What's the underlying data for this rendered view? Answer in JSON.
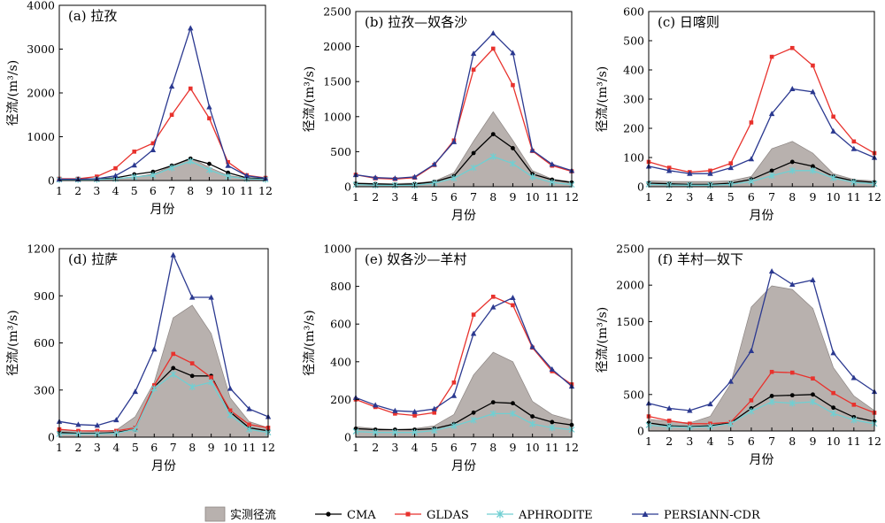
{
  "x_axis_label": "月份",
  "y_axis_label": "径流/(m³/s)",
  "months": [
    1,
    2,
    3,
    4,
    5,
    6,
    7,
    8,
    9,
    10,
    11,
    12
  ],
  "legend": {
    "observed": "实测径流",
    "cma": "CMA",
    "gldas": "GLDAS",
    "aphrodite": "APHRODITE",
    "persiann": "PERSIANN-CDR"
  },
  "colors": {
    "observed_fill": "#b8b1ae",
    "observed_edge": "#8c8583",
    "cma": "#000000",
    "gldas": "#e8322d",
    "aphrodite": "#70cfd2",
    "persiann": "#2b3990"
  },
  "chart_data": [
    {
      "type": "line",
      "title": "(a) 拉孜",
      "xlabel": "",
      "ylabel": "径流/(m³/s)",
      "x": [
        1,
        2,
        3,
        4,
        5,
        6,
        7,
        8,
        9,
        10,
        11,
        12
      ],
      "ylim": [
        0,
        4000
      ],
      "yticks": [
        0,
        1000,
        2000,
        3000,
        4000
      ],
      "series": [
        {
          "name": "实测径流",
          "kind": "area",
          "values": [
            30,
            25,
            25,
            45,
            80,
            150,
            330,
            520,
            300,
            120,
            50,
            35
          ]
        },
        {
          "name": "CMA",
          "values": [
            30,
            30,
            35,
            60,
            140,
            200,
            340,
            500,
            380,
            180,
            60,
            40
          ]
        },
        {
          "name": "GLDAS",
          "values": [
            40,
            40,
            90,
            280,
            660,
            850,
            1500,
            2100,
            1420,
            420,
            120,
            60
          ]
        },
        {
          "name": "APHRODITE",
          "values": [
            20,
            20,
            25,
            40,
            80,
            120,
            290,
            440,
            240,
            90,
            40,
            25
          ]
        },
        {
          "name": "PERSIANN-CDR",
          "values": [
            30,
            30,
            40,
            110,
            350,
            700,
            2150,
            3480,
            1680,
            340,
            110,
            50
          ]
        }
      ]
    },
    {
      "type": "line",
      "title": "(b) 拉孜—奴各沙",
      "xlabel": "",
      "ylabel": "径流/(m³/s)",
      "x": [
        1,
        2,
        3,
        4,
        5,
        6,
        7,
        8,
        9,
        10,
        11,
        12
      ],
      "ylim": [
        0,
        2500
      ],
      "yticks": [
        0,
        500,
        1000,
        1500,
        2000,
        2500
      ],
      "series": [
        {
          "name": "实测径流",
          "kind": "area",
          "values": [
            55,
            45,
            45,
            50,
            80,
            200,
            650,
            1070,
            660,
            230,
            110,
            70
          ]
        },
        {
          "name": "CMA",
          "values": [
            45,
            40,
            30,
            40,
            70,
            150,
            480,
            750,
            550,
            180,
            100,
            60
          ]
        },
        {
          "name": "GLDAS",
          "values": [
            170,
            120,
            110,
            130,
            310,
            660,
            1670,
            1970,
            1450,
            510,
            300,
            220
          ]
        },
        {
          "name": "APHRODITE",
          "values": [
            30,
            20,
            20,
            20,
            50,
            120,
            270,
            430,
            330,
            140,
            60,
            30
          ]
        },
        {
          "name": "PERSIANN-CDR",
          "values": [
            170,
            130,
            120,
            140,
            320,
            640,
            1900,
            2190,
            1910,
            520,
            320,
            230
          ]
        }
      ]
    },
    {
      "type": "line",
      "title": "(c) 日喀则",
      "xlabel": "",
      "ylabel": "径流/(m³/s)",
      "x": [
        1,
        2,
        3,
        4,
        5,
        6,
        7,
        8,
        9,
        10,
        11,
        12
      ],
      "ylim": [
        0,
        600
      ],
      "yticks": [
        0,
        100,
        200,
        300,
        400,
        500,
        600
      ],
      "series": [
        {
          "name": "实测径流",
          "kind": "area",
          "values": [
            20,
            18,
            18,
            18,
            20,
            35,
            130,
            155,
            115,
            45,
            25,
            20
          ]
        },
        {
          "name": "CMA",
          "values": [
            12,
            10,
            8,
            8,
            12,
            25,
            55,
            85,
            70,
            35,
            20,
            15
          ]
        },
        {
          "name": "GLDAS",
          "values": [
            85,
            65,
            50,
            55,
            80,
            220,
            445,
            475,
            415,
            240,
            155,
            115
          ]
        },
        {
          "name": "APHRODITE",
          "values": [
            8,
            6,
            5,
            5,
            8,
            18,
            38,
            55,
            55,
            30,
            15,
            10
          ]
        },
        {
          "name": "PERSIANN-CDR",
          "values": [
            70,
            55,
            45,
            45,
            65,
            95,
            250,
            335,
            325,
            190,
            130,
            100
          ]
        }
      ]
    },
    {
      "type": "line",
      "title": "(d) 拉萨",
      "xlabel": "",
      "ylabel": "径流/(m³/s)",
      "x": [
        1,
        2,
        3,
        4,
        5,
        6,
        7,
        8,
        9,
        10,
        11,
        12
      ],
      "ylim": [
        0,
        1200
      ],
      "yticks": [
        0,
        300,
        600,
        900,
        1200
      ],
      "series": [
        {
          "name": "实测径流",
          "kind": "area",
          "values": [
            50,
            40,
            35,
            45,
            130,
            350,
            760,
            840,
            660,
            250,
            100,
            60
          ]
        },
        {
          "name": "CMA",
          "values": [
            30,
            25,
            25,
            30,
            50,
            320,
            440,
            390,
            390,
            160,
            60,
            40
          ]
        },
        {
          "name": "GLDAS",
          "values": [
            50,
            40,
            40,
            40,
            60,
            330,
            530,
            470,
            380,
            170,
            80,
            60
          ]
        },
        {
          "name": "APHRODITE",
          "values": [
            20,
            20,
            20,
            25,
            50,
            310,
            400,
            320,
            350,
            140,
            50,
            30
          ]
        },
        {
          "name": "PERSIANN-CDR",
          "values": [
            100,
            80,
            75,
            110,
            290,
            560,
            1160,
            890,
            890,
            310,
            180,
            130
          ]
        }
      ]
    },
    {
      "type": "line",
      "title": "(e) 奴各沙—羊村",
      "xlabel": "",
      "ylabel": "径流/(m³/s)",
      "x": [
        1,
        2,
        3,
        4,
        5,
        6,
        7,
        8,
        9,
        10,
        11,
        12
      ],
      "ylim": [
        0,
        1000
      ],
      "yticks": [
        0,
        200,
        400,
        600,
        800,
        1000
      ],
      "series": [
        {
          "name": "实测径流",
          "kind": "area",
          "values": [
            55,
            45,
            40,
            45,
            60,
            120,
            330,
            450,
            400,
            190,
            120,
            90
          ]
        },
        {
          "name": "CMA",
          "values": [
            45,
            40,
            40,
            40,
            45,
            70,
            130,
            185,
            180,
            110,
            80,
            65
          ]
        },
        {
          "name": "GLDAS",
          "values": [
            200,
            160,
            125,
            115,
            130,
            290,
            650,
            745,
            700,
            475,
            350,
            280
          ]
        },
        {
          "name": "APHRODITE",
          "values": [
            30,
            25,
            25,
            25,
            35,
            60,
            90,
            125,
            125,
            70,
            50,
            40
          ]
        },
        {
          "name": "PERSIANN-CDR",
          "values": [
            210,
            170,
            140,
            135,
            150,
            220,
            550,
            690,
            740,
            480,
            360,
            270
          ]
        }
      ]
    },
    {
      "type": "line",
      "title": "(f) 羊村—奴下",
      "xlabel": "月份",
      "ylabel": "径流/(m³/s)",
      "x": [
        1,
        2,
        3,
        4,
        5,
        6,
        7,
        8,
        9,
        10,
        11,
        12
      ],
      "ylim": [
        0,
        2500
      ],
      "yticks": [
        0,
        500,
        1000,
        1500,
        2000,
        2500
      ],
      "series": [
        {
          "name": "实测径流",
          "kind": "area",
          "values": [
            160,
            130,
            110,
            200,
            650,
            1700,
            1990,
            1940,
            1680,
            870,
            480,
            280
          ]
        },
        {
          "name": "CMA",
          "values": [
            110,
            70,
            60,
            70,
            110,
            310,
            480,
            490,
            500,
            320,
            190,
            130
          ]
        },
        {
          "name": "GLDAS",
          "values": [
            200,
            140,
            100,
            100,
            120,
            420,
            810,
            800,
            720,
            520,
            360,
            250
          ]
        },
        {
          "name": "APHRODITE",
          "values": [
            80,
            60,
            50,
            60,
            100,
            270,
            400,
            380,
            400,
            240,
            150,
            100
          ]
        },
        {
          "name": "PERSIANN-CDR",
          "values": [
            380,
            310,
            280,
            370,
            680,
            1100,
            2190,
            2010,
            2070,
            1070,
            730,
            540
          ]
        }
      ]
    }
  ]
}
